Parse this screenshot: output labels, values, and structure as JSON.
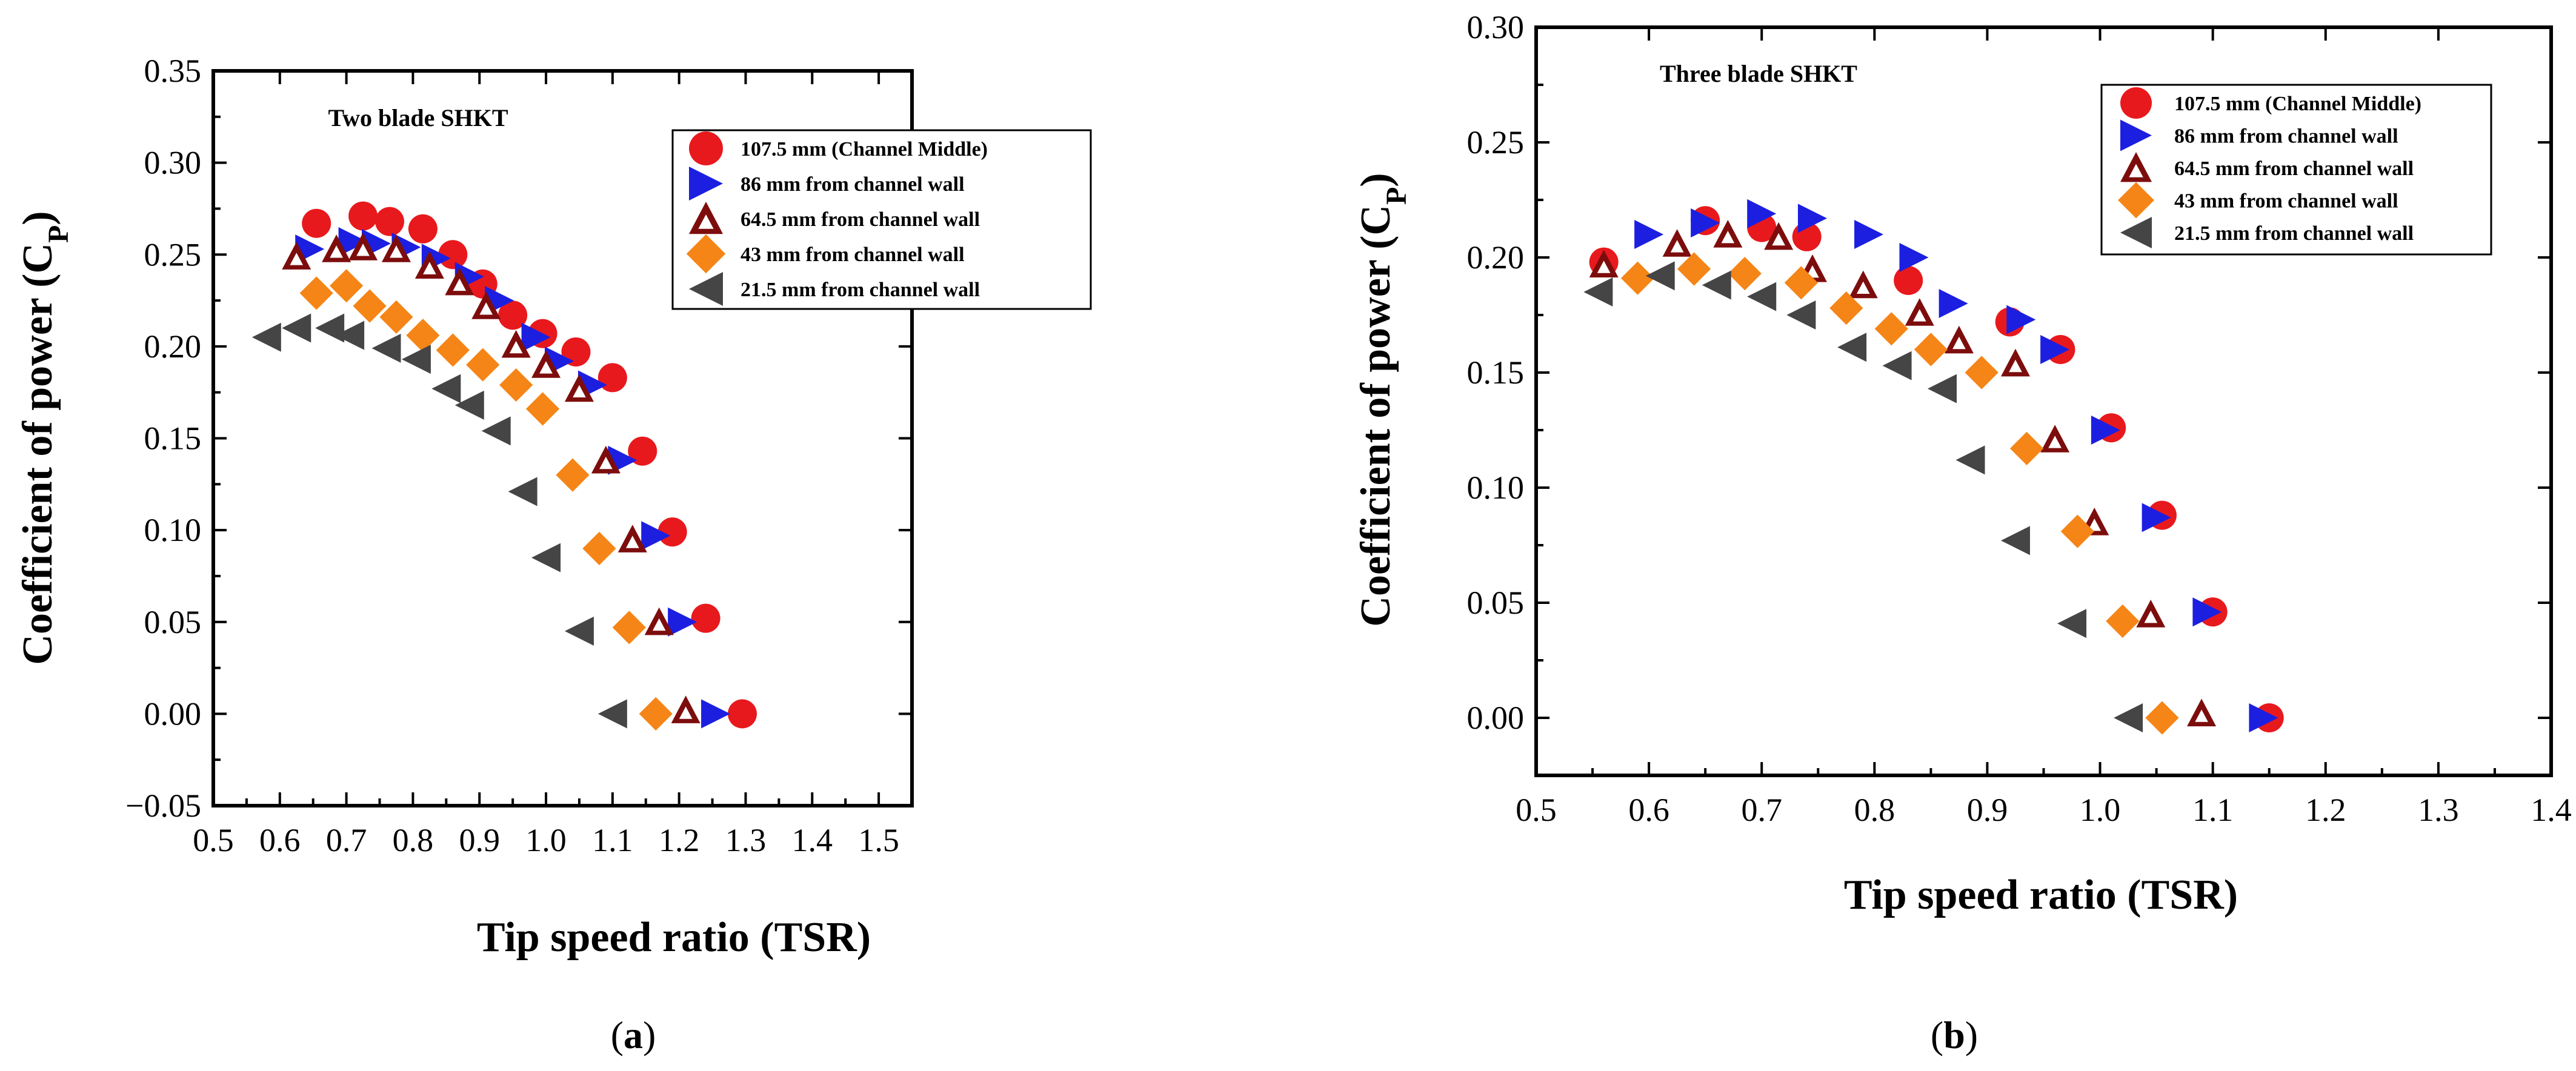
{
  "chart_data": [
    {
      "type": "scatter",
      "panel": "(a)",
      "panel_letter": "a",
      "title": "Two blade SHKT",
      "xlabel": "Tip speed ratio (TSR)",
      "ylabel": "Coefficient of power (C",
      "ylabel_sub": "P",
      "ylabel_close": ")",
      "xlim": [
        0.5,
        1.55
      ],
      "ylim": [
        -0.05,
        0.35
      ],
      "xticks": [
        "0.5",
        "0.6",
        "0.7",
        "0.8",
        "0.9",
        "1.0",
        "1.1",
        "1.2",
        "1.3",
        "1.4",
        "1.5"
      ],
      "yticks": [
        "−0.05",
        "0.00",
        "0.05",
        "0.10",
        "0.15",
        "0.20",
        "0.25",
        "0.30",
        "0.35"
      ],
      "series": [
        {
          "name": "107.5 mm (Channel Middle)",
          "marker": "circle",
          "color": "#e8191d",
          "x": [
            0.655,
            0.725,
            0.765,
            0.815,
            0.86,
            0.905,
            0.95,
            0.995,
            1.045,
            1.1,
            1.145,
            1.19,
            1.24,
            1.295
          ],
          "y": [
            0.267,
            0.271,
            0.268,
            0.264,
            0.25,
            0.234,
            0.217,
            0.207,
            0.197,
            0.183,
            0.143,
            0.099,
            0.052,
            0.0
          ]
        },
        {
          "name": "86 mm from channel wall",
          "marker": "triangle-right",
          "color": "#1c1fe0",
          "x": [
            0.645,
            0.71,
            0.745,
            0.79,
            0.835,
            0.885,
            0.93,
            0.985,
            1.02,
            1.07,
            1.115,
            1.165,
            1.205,
            1.255
          ],
          "y": [
            0.253,
            0.257,
            0.256,
            0.254,
            0.248,
            0.238,
            0.225,
            0.205,
            0.192,
            0.179,
            0.138,
            0.097,
            0.05,
            0.0
          ]
        },
        {
          "name": "64.5 mm from channel wall",
          "marker": "triangle-up-open",
          "color": "#7d0d0d",
          "x": [
            0.625,
            0.685,
            0.725,
            0.775,
            0.825,
            0.87,
            0.91,
            0.955,
            1.0,
            1.05,
            1.09,
            1.13,
            1.17,
            1.21
          ],
          "y": [
            0.249,
            0.253,
            0.254,
            0.253,
            0.244,
            0.235,
            0.222,
            0.201,
            0.19,
            0.177,
            0.138,
            0.095,
            0.05,
            0.002
          ]
        },
        {
          "name": "43 mm from channel wall",
          "marker": "diamond",
          "color": "#f58516",
          "x": [
            0.655,
            0.7,
            0.735,
            0.775,
            0.815,
            0.86,
            0.905,
            0.955,
            0.995,
            1.04,
            1.08,
            1.125,
            1.165
          ],
          "y": [
            0.229,
            0.233,
            0.222,
            0.216,
            0.206,
            0.198,
            0.19,
            0.179,
            0.166,
            0.13,
            0.09,
            0.047,
            0.0
          ]
        },
        {
          "name": "21.5 mm from channel wall",
          "marker": "triangle-left",
          "color": "#454545",
          "x": [
            0.58,
            0.625,
            0.675,
            0.705,
            0.76,
            0.805,
            0.85,
            0.885,
            0.925,
            0.965,
            1.0,
            1.05,
            1.1
          ],
          "y": [
            0.205,
            0.21,
            0.21,
            0.206,
            0.199,
            0.193,
            0.177,
            0.168,
            0.154,
            0.121,
            0.085,
            0.045,
            0.0
          ]
        }
      ]
    },
    {
      "type": "scatter",
      "panel": "(b)",
      "panel_letter": "b",
      "title": "Three blade SHKT",
      "xlabel": "Tip speed ratio (TSR)",
      "ylabel": "Coefficient of power (C",
      "ylabel_sub": "P",
      "ylabel_close": ")",
      "xlim": [
        0.5,
        1.4
      ],
      "ylim": [
        -0.025,
        0.3
      ],
      "xticks": [
        "0.5",
        "0.6",
        "0.7",
        "0.8",
        "0.9",
        "1.0",
        "1.1",
        "1.2",
        "1.3",
        "1.4"
      ],
      "yticks": [
        "0.00",
        "0.05",
        "0.10",
        "0.15",
        "0.20",
        "0.25",
        "0.30"
      ],
      "series": [
        {
          "name": "107.5 mm (Channel Middle)",
          "marker": "circle",
          "color": "#e8191d",
          "x": [
            0.56,
            0.65,
            0.7,
            0.74,
            0.83,
            0.92,
            0.965,
            1.01,
            1.055,
            1.1,
            1.15
          ],
          "y": [
            0.198,
            0.216,
            0.213,
            0.209,
            0.19,
            0.172,
            0.16,
            0.126,
            0.088,
            0.046,
            0.0
          ]
        },
        {
          "name": "86 mm from channel wall",
          "marker": "triangle-right",
          "color": "#1c1fe0",
          "x": [
            0.6,
            0.65,
            0.7,
            0.745,
            0.795,
            0.835,
            0.87,
            0.93,
            0.96,
            1.005,
            1.05,
            1.095,
            1.145
          ],
          "y": [
            0.21,
            0.215,
            0.219,
            0.217,
            0.21,
            0.2,
            0.18,
            0.173,
            0.16,
            0.125,
            0.087,
            0.046,
            0.0
          ]
        },
        {
          "name": "64.5 mm from channel wall",
          "marker": "triangle-up-open",
          "color": "#7d0d0d",
          "x": [
            0.56,
            0.625,
            0.67,
            0.715,
            0.745,
            0.79,
            0.84,
            0.875,
            0.925,
            0.96,
            0.995,
            1.045,
            1.09
          ],
          "y": [
            0.197,
            0.206,
            0.21,
            0.209,
            0.195,
            0.188,
            0.176,
            0.164,
            0.154,
            0.121,
            0.085,
            0.045,
            0.002
          ]
        },
        {
          "name": "43 mm from channel wall",
          "marker": "diamond",
          "color": "#f58516",
          "x": [
            0.59,
            0.64,
            0.685,
            0.735,
            0.775,
            0.815,
            0.85,
            0.895,
            0.935,
            0.98,
            1.02,
            1.055
          ],
          "y": [
            0.191,
            0.195,
            0.193,
            0.189,
            0.178,
            0.169,
            0.16,
            0.15,
            0.117,
            0.081,
            0.042,
            0.0
          ]
        },
        {
          "name": "21.5 mm from channel wall",
          "marker": "triangle-left",
          "color": "#454545",
          "x": [
            0.555,
            0.61,
            0.66,
            0.7,
            0.735,
            0.78,
            0.82,
            0.86,
            0.885,
            0.925,
            0.975,
            1.025
          ],
          "y": [
            0.185,
            0.192,
            0.188,
            0.183,
            0.175,
            0.161,
            0.153,
            0.143,
            0.112,
            0.077,
            0.041,
            0.0
          ]
        }
      ]
    }
  ]
}
